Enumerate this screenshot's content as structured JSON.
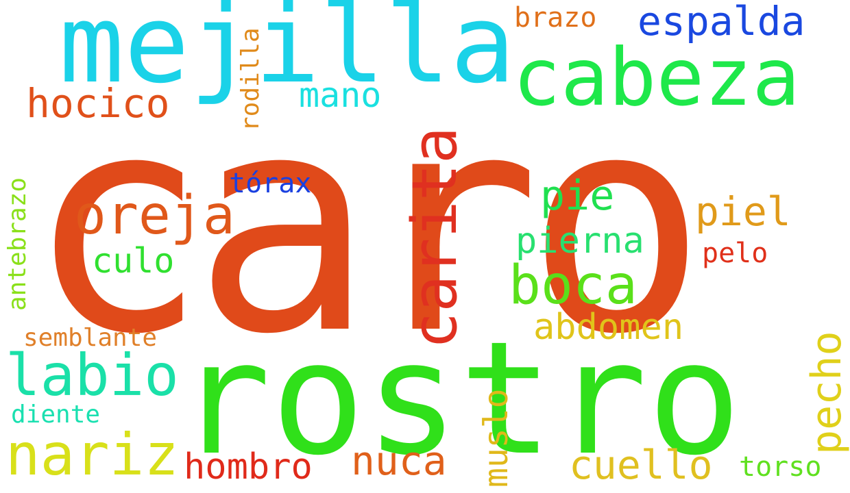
{
  "words": [
    {
      "text": "caro",
      "color": "#e04a1a"
    },
    {
      "text": "rostro",
      "color": "#30e01a"
    },
    {
      "text": "mejilla",
      "color": "#1ad2e8"
    },
    {
      "text": "cabeza",
      "color": "#1ee84a"
    },
    {
      "text": "carita",
      "color": "#e03020"
    },
    {
      "text": "boca",
      "color": "#5ae01a"
    },
    {
      "text": "oreja",
      "color": "#e0581a"
    },
    {
      "text": "labio",
      "color": "#1ae0a8"
    },
    {
      "text": "nariz",
      "color": "#d8e01a"
    },
    {
      "text": "espalda",
      "color": "#1a48e0"
    },
    {
      "text": "hocico",
      "color": "#e0501a"
    },
    {
      "text": "mano",
      "color": "#1ae0e0"
    },
    {
      "text": "brazo",
      "color": "#e0701a"
    },
    {
      "text": "rodilla",
      "color": "#e08a1a"
    },
    {
      "text": "antebrazo",
      "color": "#8ae01a"
    },
    {
      "text": "tórax",
      "color": "#1a40e0"
    },
    {
      "text": "pie",
      "color": "#20e050"
    },
    {
      "text": "pierna",
      "color": "#28e070"
    },
    {
      "text": "piel",
      "color": "#e09a1a"
    },
    {
      "text": "pelo",
      "color": "#e0301a"
    },
    {
      "text": "culo",
      "color": "#30e030"
    },
    {
      "text": "abdomen",
      "color": "#e0c41a"
    },
    {
      "text": "semblante",
      "color": "#e0802a"
    },
    {
      "text": "diente",
      "color": "#1ae0b0"
    },
    {
      "text": "hombro",
      "color": "#e02a1a"
    },
    {
      "text": "nuca",
      "color": "#e0601a"
    },
    {
      "text": "muslo",
      "color": "#e0b81a"
    },
    {
      "text": "pecho",
      "color": "#e0d01a"
    },
    {
      "text": "cuello",
      "color": "#e0c020"
    },
    {
      "text": "torso",
      "color": "#60e020"
    }
  ]
}
